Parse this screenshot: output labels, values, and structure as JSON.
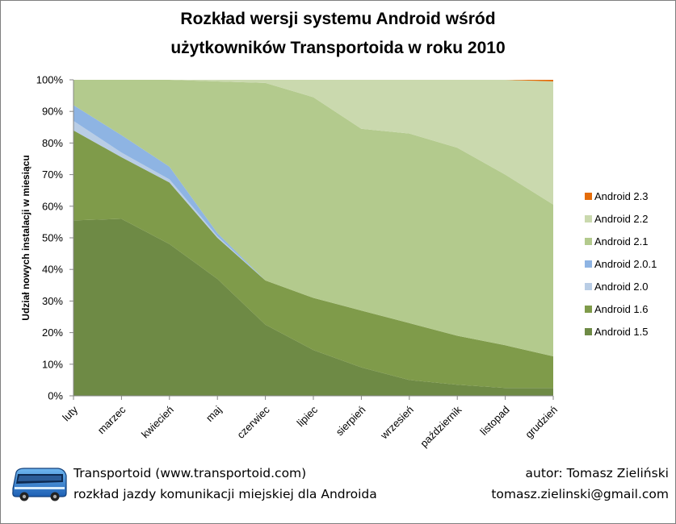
{
  "chart_data": {
    "type": "area",
    "stacked": true,
    "percent": true,
    "title_line1": "Rozkład wersji systemu Android wśród",
    "title_line2": "użytkowników Transportoida w roku 2010",
    "ylabel": "Udział nowych instalacji w miesiącu",
    "xlabel": "",
    "ylim": [
      0,
      100
    ],
    "yticks": [
      "0%",
      "10%",
      "20%",
      "30%",
      "40%",
      "50%",
      "60%",
      "70%",
      "80%",
      "90%",
      "100%"
    ],
    "categories": [
      "luty",
      "marzec",
      "kwiecień",
      "maj",
      "czerwiec",
      "lipiec",
      "sierpień",
      "wrzesień",
      "październik",
      "listopad",
      "grudzień"
    ],
    "legend_position": "right",
    "grid": false,
    "series": [
      {
        "name": "Android 1.5",
        "color": "#6e8a45",
        "values": [
          55.5,
          56,
          48,
          37,
          22.5,
          14.5,
          9,
          5,
          3.5,
          2.5,
          2.5
        ]
      },
      {
        "name": "Android 1.6",
        "color": "#7f9b4a",
        "values": [
          28.5,
          19.5,
          19.5,
          13,
          14,
          16.5,
          18,
          18,
          15.5,
          13.5,
          10
        ]
      },
      {
        "name": "Android 2.0",
        "color": "#b9cde5",
        "values": [
          3,
          1.5,
          1,
          0.5,
          0,
          0,
          0,
          0,
          0,
          0,
          0
        ]
      },
      {
        "name": "Android 2.0.1",
        "color": "#8eb4e3",
        "values": [
          5,
          5.5,
          4,
          1,
          0,
          0,
          0,
          0,
          0,
          0,
          0
        ]
      },
      {
        "name": "Android 2.1",
        "color": "#b3ca8d",
        "values": [
          8,
          17.5,
          27.5,
          48,
          62.5,
          63.5,
          57.5,
          60,
          59.5,
          54,
          48
        ]
      },
      {
        "name": "Android 2.2",
        "color": "#cad9ae",
        "values": [
          0,
          0,
          0,
          0.5,
          1,
          5.5,
          15.5,
          17,
          21.5,
          30,
          39
        ]
      },
      {
        "name": "Android 2.3",
        "color": "#e46c0a",
        "values": [
          0,
          0,
          0,
          0,
          0,
          0,
          0,
          0,
          0,
          0,
          0.5
        ]
      }
    ]
  },
  "footer": {
    "line1": "Transportoid (www.transportoid.com)",
    "line2": "rozkład jazdy komunikacji miejskiej dla Androida",
    "author": "autor: Tomasz Zieliński",
    "email": "tomasz.zielinski@gmail.com",
    "logo_icon": "bus-icon"
  }
}
